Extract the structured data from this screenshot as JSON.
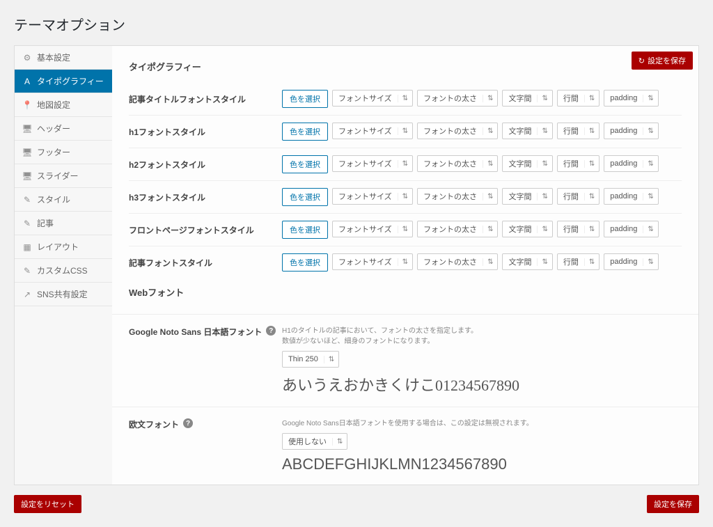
{
  "page_title": "テーマオプション",
  "save_button": "設定を保存",
  "reset_button": "設定をリセット",
  "sidebar": {
    "items": [
      {
        "icon": "⚙",
        "label": "基本設定"
      },
      {
        "icon": "A",
        "label": "タイポグラフィー"
      },
      {
        "icon": "📍",
        "label": "地図設定"
      },
      {
        "icon": "🖥",
        "label": "ヘッダー"
      },
      {
        "icon": "🖥",
        "label": "フッター"
      },
      {
        "icon": "🖥",
        "label": "スライダー"
      },
      {
        "icon": "✎",
        "label": "スタイル"
      },
      {
        "icon": "✎",
        "label": "記事"
      },
      {
        "icon": "▦",
        "label": "レイアウト"
      },
      {
        "icon": "✎",
        "label": "カスタムCSS"
      },
      {
        "icon": "↗",
        "label": "SNS共有設定"
      }
    ],
    "active_index": 1
  },
  "section_title": "タイポグラフィー",
  "color_button": "色を選択",
  "selectors": {
    "fontsize": "フォントサイズ",
    "fontweight": "フォントの太さ",
    "letterspacing": "文字間",
    "lineheight": "行間",
    "padding": "padding"
  },
  "rows": [
    {
      "label": "記事タイトルフォントスタイル"
    },
    {
      "label": "h1フォントスタイル"
    },
    {
      "label": "h2フォントスタイル"
    },
    {
      "label": "h3フォントスタイル"
    },
    {
      "label": "フロントページフォントスタイル"
    },
    {
      "label": "記事フォントスタイル"
    }
  ],
  "webfont_title": "Webフォント",
  "noto": {
    "label": "Google Noto Sans 日本語フォント",
    "hint1": "H1のタイトルの記事において、フォントの太さを指定します。",
    "hint2": "数値が少ないほど、細身のフォントになります。",
    "value": "Thin 250",
    "preview": "あいうえおかきくけこ01234567890"
  },
  "latin": {
    "label": "欧文フォント",
    "hint": "Google Noto Sans日本語フォントを使用する場合は、この設定は無視されます。",
    "value": "使用しない",
    "preview": "ABCDEFGHIJKLMN1234567890"
  }
}
